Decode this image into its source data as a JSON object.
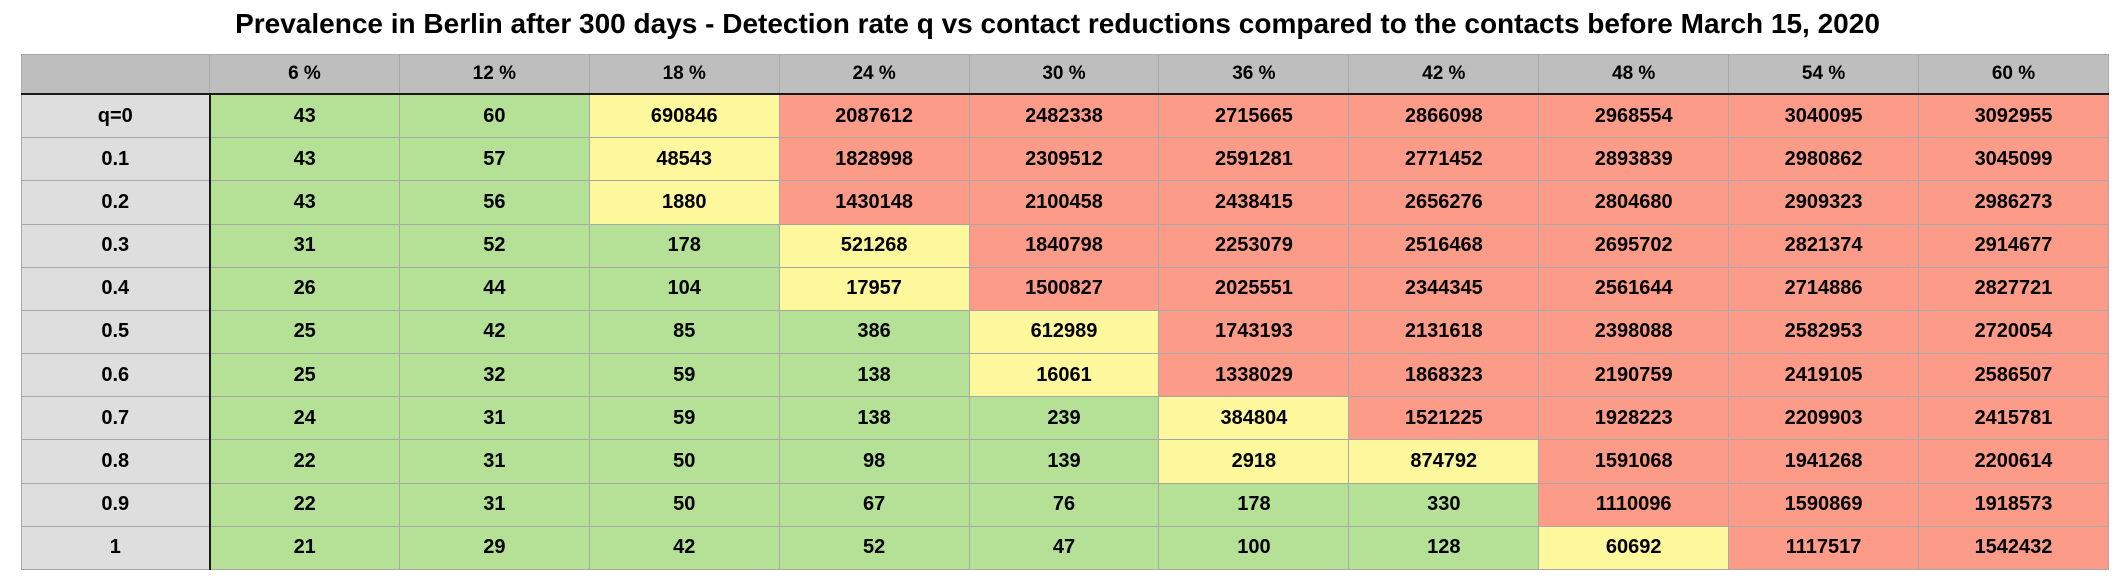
{
  "chart_data": {
    "type": "table",
    "title": "Prevalence in Berlin after 300 days - Detection rate q vs contact reductions compared to the contacts before March 15, 2020",
    "column_headers": [
      "6 %",
      "12 %",
      "18 %",
      "24 %",
      "30 %",
      "36 %",
      "42 %",
      "48 %",
      "54 %",
      "60 %"
    ],
    "row_headers": [
      "q=0",
      "0.1",
      "0.2",
      "0.3",
      "0.4",
      "0.5",
      "0.6",
      "0.7",
      "0.8",
      "0.9",
      "1"
    ],
    "values": [
      [
        43,
        60,
        690846,
        2087612,
        2482338,
        2715665,
        2866098,
        2968554,
        3040095,
        3092955
      ],
      [
        43,
        57,
        48543,
        1828998,
        2309512,
        2591281,
        2771452,
        2893839,
        2980862,
        3045099
      ],
      [
        43,
        56,
        1880,
        1430148,
        2100458,
        2438415,
        2656276,
        2804680,
        2909323,
        2986273
      ],
      [
        31,
        52,
        178,
        521268,
        1840798,
        2253079,
        2516468,
        2695702,
        2821374,
        2914677
      ],
      [
        26,
        44,
        104,
        17957,
        1500827,
        2025551,
        2344345,
        2561644,
        2714886,
        2827721
      ],
      [
        25,
        42,
        85,
        386,
        612989,
        1743193,
        2131618,
        2398088,
        2582953,
        2720054
      ],
      [
        25,
        32,
        59,
        138,
        16061,
        1338029,
        1868323,
        2190759,
        2419105,
        2586507
      ],
      [
        24,
        31,
        59,
        138,
        239,
        384804,
        1521225,
        1928223,
        2209903,
        2415781
      ],
      [
        22,
        31,
        50,
        98,
        139,
        2918,
        874792,
        1591068,
        1941268,
        2200614
      ],
      [
        22,
        31,
        50,
        67,
        76,
        178,
        330,
        1110096,
        1590869,
        1918573
      ],
      [
        21,
        29,
        42,
        52,
        47,
        100,
        128,
        60692,
        1117517,
        1542432
      ]
    ],
    "cell_levels": [
      [
        "green",
        "green",
        "yellow",
        "red",
        "red",
        "red",
        "red",
        "red",
        "red",
        "red"
      ],
      [
        "green",
        "green",
        "yellow",
        "red",
        "red",
        "red",
        "red",
        "red",
        "red",
        "red"
      ],
      [
        "green",
        "green",
        "yellow",
        "red",
        "red",
        "red",
        "red",
        "red",
        "red",
        "red"
      ],
      [
        "green",
        "green",
        "green",
        "yellow",
        "red",
        "red",
        "red",
        "red",
        "red",
        "red"
      ],
      [
        "green",
        "green",
        "green",
        "yellow",
        "red",
        "red",
        "red",
        "red",
        "red",
        "red"
      ],
      [
        "green",
        "green",
        "green",
        "green",
        "yellow",
        "red",
        "red",
        "red",
        "red",
        "red"
      ],
      [
        "green",
        "green",
        "green",
        "green",
        "yellow",
        "red",
        "red",
        "red",
        "red",
        "red"
      ],
      [
        "green",
        "green",
        "green",
        "green",
        "green",
        "yellow",
        "red",
        "red",
        "red",
        "red"
      ],
      [
        "green",
        "green",
        "green",
        "green",
        "green",
        "yellow",
        "yellow",
        "red",
        "red",
        "red"
      ],
      [
        "green",
        "green",
        "green",
        "green",
        "green",
        "green",
        "green",
        "red",
        "red",
        "red"
      ],
      [
        "green",
        "green",
        "green",
        "green",
        "green",
        "green",
        "green",
        "yellow",
        "red",
        "red"
      ]
    ],
    "colors": {
      "green": "#b5e197",
      "yellow": "#fdf89b",
      "red": "#fc9c88",
      "header_fill": "#bebebe",
      "row_header_fill": "#dedede"
    }
  }
}
